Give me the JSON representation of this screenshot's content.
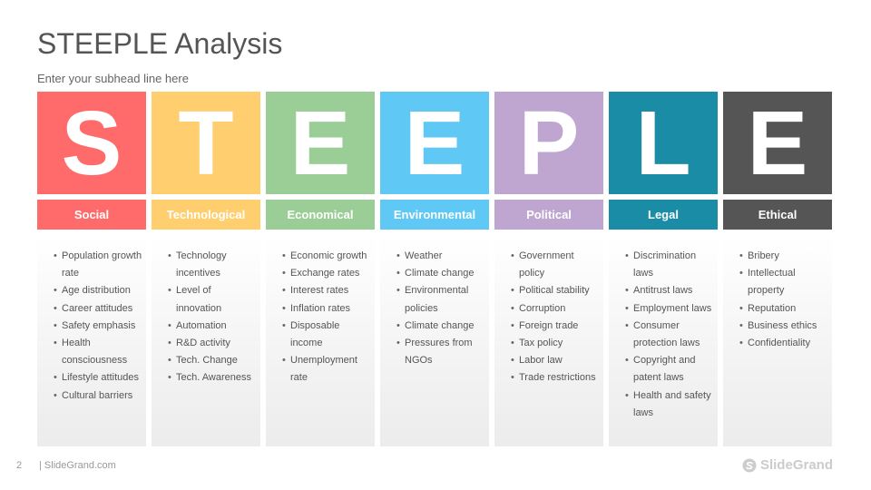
{
  "slide": {
    "title": "STEEPLE Analysis",
    "subhead": "Enter your subhead line here",
    "page_number": "2",
    "footer_site": "| SlideGrand.com",
    "brand_name": "SlideGrand"
  },
  "columns": [
    {
      "letter": "S",
      "label": "Social",
      "color": "#FF6B6B",
      "items": [
        "Population growth rate",
        "Age distribution",
        "Career attitudes",
        "Safety emphasis",
        "Health consciousness",
        "Lifestyle attitudes",
        "Cultural barriers"
      ]
    },
    {
      "letter": "T",
      "label": "Technological",
      "color": "#FFCE6E",
      "items": [
        "Technology incentives",
        "Level of innovation",
        "Automation",
        "R&D activity",
        "Tech. Change",
        "Tech. Awareness"
      ]
    },
    {
      "letter": "E",
      "label": "Economical",
      "color": "#9ACE96",
      "items": [
        "Economic growth",
        "Exchange rates",
        "Interest rates",
        "Inflation rates",
        "Disposable income",
        "Unemployment rate"
      ]
    },
    {
      "letter": "E",
      "label": "Environmental",
      "color": "#5FC8F5",
      "items": [
        "Weather",
        "Climate change",
        "Environmental policies",
        "Climate change",
        "Pressures from NGOs"
      ]
    },
    {
      "letter": "P",
      "label": "Political",
      "color": "#BFA6D1",
      "items": [
        "Government policy",
        "Political stability",
        "Corruption",
        "Foreign trade",
        "Tax policy",
        "Labor law",
        "Trade restrictions"
      ]
    },
    {
      "letter": "L",
      "label": "Legal",
      "color": "#1A8CA5",
      "items": [
        "Discrimination laws",
        "Antitrust laws",
        "Employment laws",
        "Consumer protection laws",
        "Copyright and patent laws",
        "Health and safety laws"
      ]
    },
    {
      "letter": "E",
      "label": "Ethical",
      "color": "#555555",
      "items": [
        "Bribery",
        "Intellectual property",
        "Reputation",
        "Business ethics",
        "Confidentiality"
      ]
    }
  ]
}
